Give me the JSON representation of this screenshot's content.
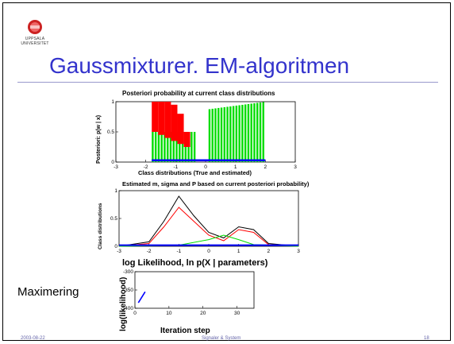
{
  "slide": {
    "logo_text_top": "UPPSALA",
    "logo_text_bottom": "UNIVERSITET",
    "title": "Gaussmixturer. EM-algoritmen",
    "side_label": "Maximering",
    "footer": {
      "date": "2003-08-22",
      "center": "Signaler & System",
      "page": "18"
    },
    "colors": {
      "title": "#3333cc",
      "red": "#ff0000",
      "green": "#00dd00",
      "blue": "#0000ff"
    }
  },
  "chart_data": [
    {
      "type": "bar",
      "title": "Posteriori probability at current class distributions",
      "xlabel": "Class distributions (True and estimated)",
      "ylabel": "Posteriori: p(w | x)",
      "xlim": [
        -3,
        3
      ],
      "ylim": [
        0,
        1
      ],
      "xticks": [
        "-3",
        "-2",
        "-1",
        "0",
        "1",
        "2",
        "3"
      ],
      "yticks": [
        "0",
        "0.5",
        "1"
      ],
      "series": [
        {
          "color": "#ff0000",
          "x_range": [
            -1.8,
            -0.3
          ],
          "values_top": [
            1,
            1,
            1,
            0.95,
            0.8,
            0.5,
            0.2
          ]
        },
        {
          "color": "#00dd00",
          "x_range": [
            -1.8,
            2.0
          ]
        },
        {
          "color": "#0000ff",
          "x_range": [
            -1.8,
            2.0
          ],
          "values": [
            0.03
          ]
        }
      ]
    },
    {
      "type": "line",
      "title": "Estimated m, sigma and P based on current posteriori probability)",
      "ylabel": "Class distributions",
      "xlim": [
        -3,
        3
      ],
      "ylim": [
        0,
        1
      ],
      "xticks": [
        "-3",
        "-2",
        "-1",
        "0",
        "1",
        "2",
        "3"
      ],
      "yticks": [
        "0",
        "0.5",
        "1"
      ],
      "series": [
        {
          "color": "#000000",
          "x": [
            -3,
            -2,
            -1.5,
            -1,
            -0.5,
            0,
            0.5,
            1,
            1.5,
            2,
            3
          ],
          "y": [
            0,
            0.08,
            0.45,
            0.9,
            0.55,
            0.25,
            0.15,
            0.35,
            0.3,
            0.05,
            0
          ]
        },
        {
          "color": "#ff0000",
          "x": [
            -3,
            -2,
            -1.5,
            -1,
            -0.5,
            0,
            0.5,
            1,
            1.5,
            2,
            3
          ],
          "y": [
            0,
            0.05,
            0.35,
            0.7,
            0.45,
            0.2,
            0.1,
            0.3,
            0.25,
            0.03,
            0
          ]
        },
        {
          "color": "#00dd00",
          "x": [
            -3,
            -1,
            0,
            0.5,
            1,
            1.5,
            3
          ],
          "y": [
            0,
            0.02,
            0.12,
            0.2,
            0.12,
            0.03,
            0
          ]
        },
        {
          "color": "#0000ff",
          "x": [
            -3,
            3
          ],
          "y": [
            0.02,
            0.02
          ]
        }
      ]
    },
    {
      "type": "line",
      "title": "log Likelihood, ln p(X | parameters)",
      "xlabel": "Iteration step",
      "ylabel": "log(likelihood)",
      "xlim": [
        0,
        35
      ],
      "ylim": [
        -400,
        -300
      ],
      "xticks": [
        "0",
        "10",
        "20",
        "30"
      ],
      "yticks": [
        "-400",
        "-350",
        "-300"
      ],
      "series": [
        {
          "color": "#0000ff",
          "x": [
            1,
            2,
            3
          ],
          "y": [
            -385,
            -370,
            -355
          ]
        }
      ]
    }
  ]
}
